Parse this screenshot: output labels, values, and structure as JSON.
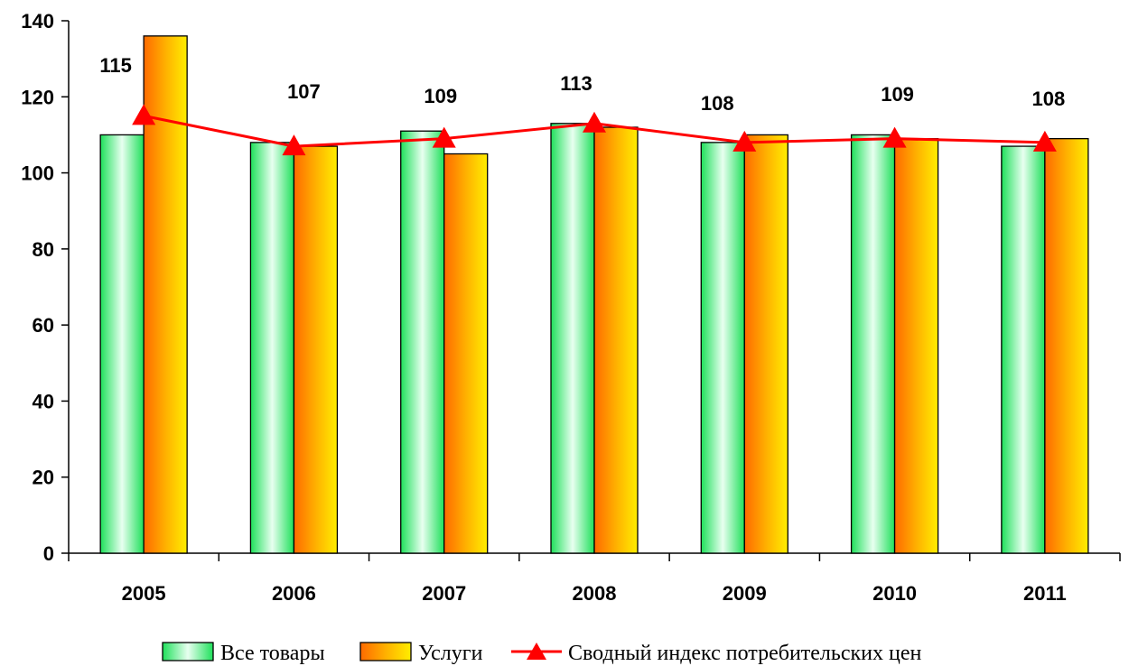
{
  "chart_data": {
    "type": "bar",
    "categories": [
      "2005",
      "2006",
      "2007",
      "2008",
      "2009",
      "2010",
      "2011"
    ],
    "ylim": [
      0,
      140
    ],
    "yticks": [
      0,
      20,
      40,
      60,
      80,
      100,
      120,
      140
    ],
    "ytick_labels": [
      "0",
      "20",
      "40",
      "60",
      "80",
      "100",
      "120",
      "140"
    ],
    "grid": false,
    "legend_position": "bottom",
    "series": [
      {
        "name": "Все товары",
        "kind": "bar",
        "values": [
          110,
          108,
          111,
          113,
          108,
          110,
          107
        ],
        "color": "#33ee66"
      },
      {
        "name": "Услуги",
        "kind": "bar",
        "values": [
          136,
          107,
          105,
          112,
          110,
          109,
          109
        ],
        "color": "#ff8800"
      },
      {
        "name": "Сводный индекс потребительских цен",
        "kind": "line",
        "values": [
          115,
          107,
          109,
          113,
          108,
          109,
          108
        ],
        "color": "#ff0000"
      }
    ],
    "data_labels": [
      "115",
      "107",
      "109",
      "113",
      "108",
      "109",
      "108"
    ]
  }
}
